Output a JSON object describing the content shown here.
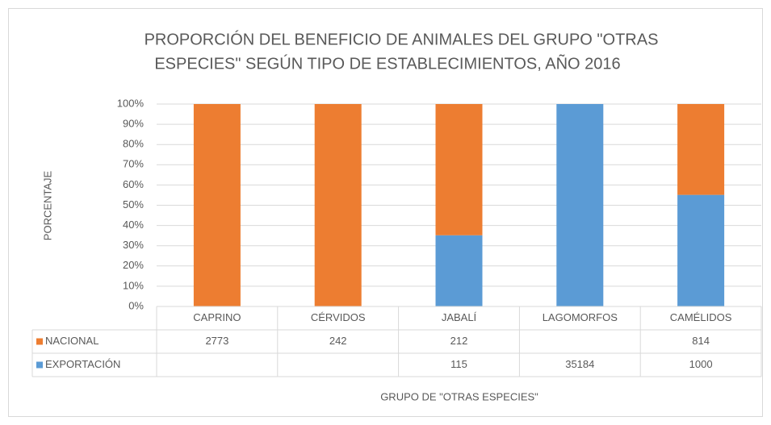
{
  "chart_data": {
    "type": "bar",
    "stacking": "percent",
    "title": [
      "PROPORCIÓN DEL BENEFICIO DE ANIMALES DEL GRUPO \"OTRAS",
      "ESPECIES\"  SEGÚN TIPO DE ESTABLECIMIENTOS, AÑO 2016"
    ],
    "y_label": "PORCENTAJE",
    "x_label": "GRUPO DE \"OTRAS ESPECIES\"",
    "categories": [
      "CAPRINO",
      "CÉRVIDOS",
      "JABALÍ",
      "LAGOMORFOS",
      "CAMÉLIDOS"
    ],
    "series": [
      {
        "name": "NACIONAL",
        "color": "#ed7d31",
        "values": [
          2773,
          242,
          212,
          null,
          814
        ]
      },
      {
        "name": "EXPORTACIÓN",
        "color": "#5b9bd5",
        "values": [
          null,
          null,
          115,
          35184,
          1000
        ]
      }
    ],
    "ylim": [
      0,
      100
    ],
    "yticks": [
      {
        "value": 0,
        "label": "0%"
      },
      {
        "value": 10,
        "label": "10%"
      },
      {
        "value": 20,
        "label": "20%"
      },
      {
        "value": 30,
        "label": "30%"
      },
      {
        "value": 40,
        "label": "40%"
      },
      {
        "value": 50,
        "label": "50%"
      },
      {
        "value": 60,
        "label": "60%"
      },
      {
        "value": 70,
        "label": "70%"
      },
      {
        "value": 80,
        "label": "80%"
      },
      {
        "value": 90,
        "label": "90%"
      },
      {
        "value": 100,
        "label": "100%"
      }
    ],
    "grid": true,
    "data_table": true
  }
}
